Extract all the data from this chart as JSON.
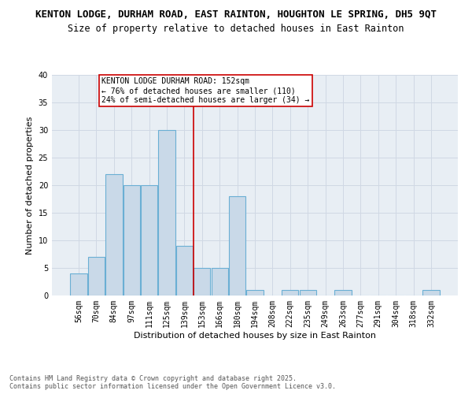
{
  "title_line1": "KENTON LODGE, DURHAM ROAD, EAST RAINTON, HOUGHTON LE SPRING, DH5 9QT",
  "title_line2": "Size of property relative to detached houses in East Rainton",
  "xlabel": "Distribution of detached houses by size in East Rainton",
  "ylabel": "Number of detached properties",
  "categories": [
    "56sqm",
    "70sqm",
    "84sqm",
    "97sqm",
    "111sqm",
    "125sqm",
    "139sqm",
    "153sqm",
    "166sqm",
    "180sqm",
    "194sqm",
    "208sqm",
    "222sqm",
    "235sqm",
    "249sqm",
    "263sqm",
    "277sqm",
    "291sqm",
    "304sqm",
    "318sqm",
    "332sqm"
  ],
  "values": [
    4,
    7,
    22,
    20,
    20,
    30,
    9,
    5,
    5,
    18,
    1,
    0,
    1,
    1,
    0,
    1,
    0,
    0,
    0,
    0,
    1
  ],
  "bar_color": "#c9d9e8",
  "bar_edge_color": "#6aafd4",
  "marker_line_index": 7,
  "marker_line_color": "#cc0000",
  "annotation_text": "KENTON LODGE DURHAM ROAD: 152sqm\n← 76% of detached houses are smaller (110)\n24% of semi-detached houses are larger (34) →",
  "annotation_box_color": "white",
  "annotation_box_edge": "#cc0000",
  "ylim": [
    0,
    40
  ],
  "yticks": [
    0,
    5,
    10,
    15,
    20,
    25,
    30,
    35,
    40
  ],
  "grid_color": "#d0d8e4",
  "bg_color": "#e8eef4",
  "footnote": "Contains HM Land Registry data © Crown copyright and database right 2025.\nContains public sector information licensed under the Open Government Licence v3.0.",
  "title_fontsize": 9,
  "subtitle_fontsize": 8.5,
  "axis_label_fontsize": 8,
  "tick_fontsize": 7,
  "annotation_fontsize": 7,
  "footnote_fontsize": 6
}
